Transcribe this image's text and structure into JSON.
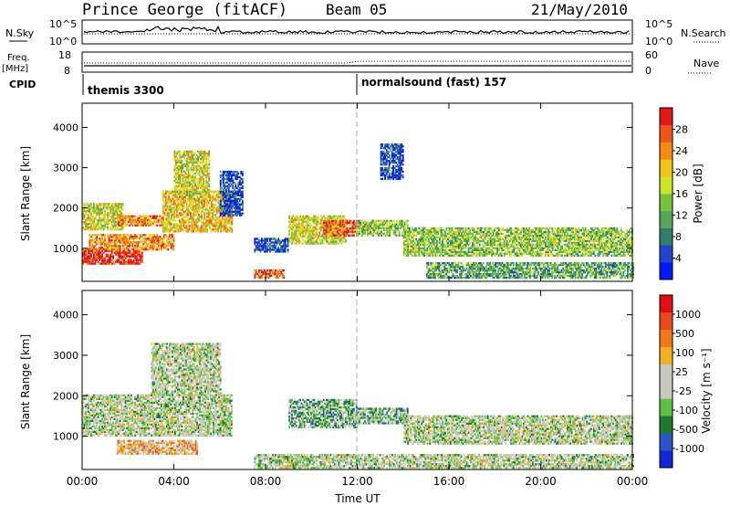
{
  "header": {
    "station": "Prince George (fitACF)",
    "beam": "Beam 05",
    "date": "21/May/2010"
  },
  "top_panel": {
    "left_label": "N.Sky",
    "right_label": "N.Search",
    "left_ticks": [
      "10^5",
      "10^0"
    ],
    "right_ticks": [
      "10^5",
      "10^0"
    ]
  },
  "freq_panel": {
    "left_label_1": "Freq.",
    "left_label_2": "[MHz]",
    "left_ticks": [
      "18",
      "8"
    ],
    "right_label": "Nave",
    "right_ticks": [
      "60",
      "0"
    ]
  },
  "cpid": {
    "label": "CPID",
    "modes": [
      {
        "name": "themis 3300",
        "start_hour": 0
      },
      {
        "name": "normalsound (fast) 157",
        "start_hour": 12
      }
    ]
  },
  "x_axis": {
    "label": "Time UT",
    "ticks": [
      "00:00",
      "04:00",
      "08:00",
      "12:00",
      "16:00",
      "20:00",
      "00:00"
    ],
    "range_hours": [
      0,
      24
    ]
  },
  "power_panel": {
    "ylabel": "Slant Range [km]",
    "yticks": [
      "1000",
      "2000",
      "3000",
      "4000"
    ],
    "colorbar_label": "Power [dB]",
    "colorbar_ticks": [
      "28",
      "24",
      "20",
      "16",
      "12",
      "8",
      "4"
    ],
    "colors": [
      "#0018ff",
      "#2244cc",
      "#2f7f6a",
      "#56a859",
      "#77c43a",
      "#cde62a",
      "#f5c41a",
      "#f58a12",
      "#f0561a",
      "#e01818"
    ]
  },
  "velocity_panel": {
    "ylabel": "Slant Range [km]",
    "yticks": [
      "1000",
      "2000",
      "3000",
      "4000"
    ],
    "colorbar_label": "Velocity [m s⁻¹]",
    "colorbar_ticks": [
      "1000",
      "500",
      "100",
      "25",
      "-25",
      "-100",
      "-500",
      "-1000"
    ],
    "colors": [
      "#1028d8",
      "#2a55c8",
      "#1d7a2a",
      "#5cc040",
      "#c8c8c0",
      "#c8c8c0",
      "#f5b020",
      "#f07818",
      "#e84a18",
      "#e01010"
    ]
  },
  "chart_data": {
    "type": "heatmap",
    "x_range_hours": [
      0,
      24
    ],
    "y_range_km": [
      180,
      4600
    ],
    "power_regions": [
      {
        "t0": 0.0,
        "t1": 2.6,
        "r0": 600,
        "r1": 1000,
        "level": 9
      },
      {
        "t0": 0.3,
        "t1": 4.0,
        "r0": 950,
        "r1": 1350,
        "level": 7
      },
      {
        "t0": 0.0,
        "t1": 1.8,
        "r0": 1450,
        "r1": 2100,
        "level": 5
      },
      {
        "t0": 1.5,
        "t1": 3.5,
        "r0": 1550,
        "r1": 1800,
        "level": 7
      },
      {
        "t0": 3.5,
        "t1": 6.5,
        "r0": 1400,
        "r1": 2400,
        "level": 6
      },
      {
        "t0": 4.0,
        "t1": 5.5,
        "r0": 2300,
        "r1": 3400,
        "level": 5
      },
      {
        "t0": 6.0,
        "t1": 7.0,
        "r0": 1800,
        "r1": 2900,
        "level": 1
      },
      {
        "t0": 7.5,
        "t1": 8.8,
        "r0": 250,
        "r1": 450,
        "level": 8
      },
      {
        "t0": 7.5,
        "t1": 9.0,
        "r0": 900,
        "r1": 1250,
        "level": 1
      },
      {
        "t0": 9.0,
        "t1": 11.5,
        "r0": 1100,
        "r1": 1800,
        "level": 5
      },
      {
        "t0": 10.5,
        "t1": 12.0,
        "r0": 1300,
        "r1": 1700,
        "level": 8
      },
      {
        "t0": 12.0,
        "t1": 14.2,
        "r0": 1300,
        "r1": 1700,
        "level": 4
      },
      {
        "t0": 14.0,
        "t1": 24.0,
        "r0": 800,
        "r1": 1500,
        "level": 4
      },
      {
        "t0": 15.0,
        "t1": 24.0,
        "r0": 250,
        "r1": 650,
        "level": 3
      },
      {
        "t0": 13.0,
        "t1": 14.0,
        "r0": 2700,
        "r1": 3600,
        "level": 1
      }
    ],
    "velocity_regions": [
      {
        "t0": 0.0,
        "t1": 6.5,
        "r0": 1000,
        "r1": 2000,
        "level": 4
      },
      {
        "t0": 3.0,
        "t1": 6.0,
        "r0": 2000,
        "r1": 3300,
        "level": 4
      },
      {
        "t0": 1.5,
        "t1": 5.0,
        "r0": 550,
        "r1": 900,
        "level": 6
      },
      {
        "t0": 9.0,
        "t1": 12.0,
        "r0": 1200,
        "r1": 1900,
        "level": 3
      },
      {
        "t0": 12.0,
        "t1": 14.2,
        "r0": 1300,
        "r1": 1700,
        "level": 3
      },
      {
        "t0": 14.0,
        "t1": 24.0,
        "r0": 800,
        "r1": 1500,
        "level": 4
      },
      {
        "t0": 7.5,
        "t1": 24.0,
        "r0": 200,
        "r1": 550,
        "level": 4
      }
    ]
  }
}
